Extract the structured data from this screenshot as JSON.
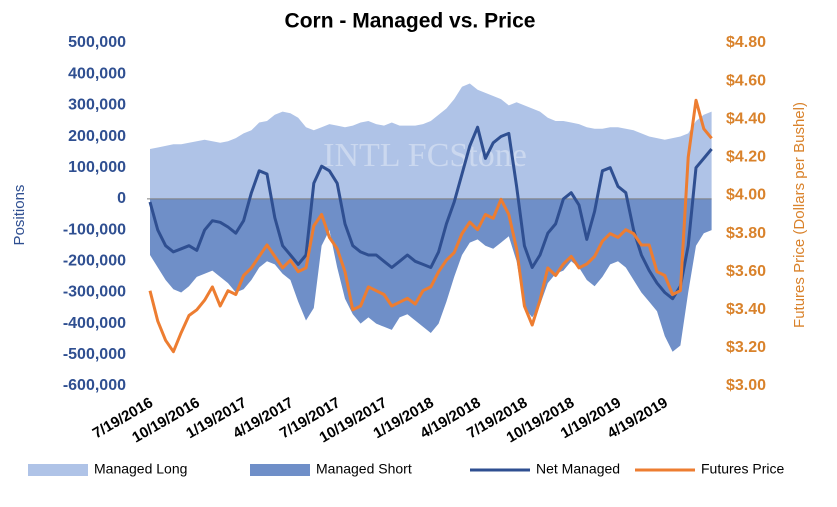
{
  "chart_data": {
    "type": "combo",
    "title": "Corn - Managed vs. Price",
    "y_label": "Positions",
    "y2_label": "Futures Price (Dollars per Bushel)",
    "watermark": "INTL FCStone",
    "legend": "bottom",
    "categories": [
      "7/19/2016",
      null,
      null,
      null,
      null,
      null,
      "10/19/2016",
      null,
      null,
      null,
      null,
      null,
      "1/19/2017",
      null,
      null,
      null,
      null,
      null,
      "4/19/2017",
      null,
      null,
      null,
      null,
      null,
      "7/19/2017",
      null,
      null,
      null,
      null,
      null,
      "10/19/2017",
      null,
      null,
      null,
      null,
      null,
      "1/19/2018",
      null,
      null,
      null,
      null,
      null,
      "4/19/2018",
      null,
      null,
      null,
      null,
      null,
      "7/19/2018",
      null,
      null,
      null,
      null,
      null,
      "10/19/2018",
      null,
      null,
      null,
      null,
      null,
      "1/19/2019",
      null,
      null,
      null,
      null,
      null,
      "4/19/2019",
      null,
      null,
      null,
      null,
      null,
      null
    ],
    "ylim": [
      -600000,
      500000
    ],
    "yticks": [
      {
        "value": -600000,
        "label": "-600,000"
      },
      {
        "value": -500000,
        "label": "-500,000"
      },
      {
        "value": -400000,
        "label": "-400,000"
      },
      {
        "value": -300000,
        "label": "-300,000"
      },
      {
        "value": -200000,
        "label": "-200,000"
      },
      {
        "value": -100000,
        "label": "-100,000"
      },
      0,
      {
        "value": 100000,
        "label": "100,000"
      },
      {
        "value": 200000,
        "label": "200,000"
      },
      {
        "value": 300000,
        "label": "300,000"
      },
      {
        "value": 400000,
        "label": "400,000"
      },
      {
        "value": 500000,
        "label": "500,000"
      }
    ],
    "y2lim": [
      3.0,
      4.8
    ],
    "y2ticks": [
      {
        "value": 3.0,
        "label": "$3.00"
      },
      {
        "value": 3.2,
        "label": "$3.20"
      },
      {
        "value": 3.4,
        "label": "$3.40"
      },
      {
        "value": 3.6,
        "label": "$3.60"
      },
      {
        "value": 3.8,
        "label": "$3.80"
      },
      {
        "value": 4.0,
        "label": "$4.00"
      },
      {
        "value": 4.2,
        "label": "$4.20"
      },
      {
        "value": 4.4,
        "label": "$4.40"
      },
      {
        "value": 4.6,
        "label": "$4.60"
      },
      {
        "value": 4.8,
        "label": "$4.80"
      }
    ],
    "series": [
      {
        "name": "Managed Long",
        "kind": "area",
        "color": "#afc3e7",
        "values": [
          160000,
          165000,
          170000,
          175000,
          175000,
          180000,
          185000,
          190000,
          185000,
          180000,
          185000,
          195000,
          210000,
          220000,
          245000,
          250000,
          270000,
          280000,
          275000,
          260000,
          230000,
          220000,
          230000,
          240000,
          235000,
          230000,
          235000,
          245000,
          250000,
          240000,
          235000,
          245000,
          235000,
          235000,
          235000,
          240000,
          250000,
          270000,
          290000,
          320000,
          360000,
          370000,
          350000,
          340000,
          330000,
          320000,
          300000,
          310000,
          300000,
          290000,
          280000,
          260000,
          250000,
          250000,
          245000,
          240000,
          230000,
          225000,
          225000,
          230000,
          230000,
          225000,
          220000,
          210000,
          200000,
          195000,
          190000,
          195000,
          200000,
          210000,
          250000,
          270000,
          280000
        ]
      },
      {
        "name": "Managed Short",
        "kind": "area",
        "color": "#6f8fc8",
        "values": [
          -180000,
          -220000,
          -260000,
          -290000,
          -300000,
          -280000,
          -250000,
          -240000,
          -230000,
          -250000,
          -270000,
          -300000,
          -290000,
          -260000,
          -220000,
          -200000,
          -210000,
          -240000,
          -260000,
          -330000,
          -390000,
          -350000,
          -150000,
          -100000,
          -220000,
          -320000,
          -370000,
          -400000,
          -380000,
          -400000,
          -410000,
          -420000,
          -380000,
          -370000,
          -390000,
          -410000,
          -430000,
          -400000,
          -330000,
          -250000,
          -180000,
          -140000,
          -130000,
          -150000,
          -160000,
          -140000,
          -120000,
          -200000,
          -350000,
          -380000,
          -340000,
          -270000,
          -240000,
          -230000,
          -200000,
          -220000,
          -260000,
          -280000,
          -250000,
          -210000,
          -200000,
          -220000,
          -260000,
          -300000,
          -330000,
          -360000,
          -440000,
          -490000,
          -470000,
          -300000,
          -150000,
          -110000,
          -100000
        ]
      },
      {
        "name": "Net Managed",
        "kind": "line",
        "color": "#2f4f91",
        "values": [
          -10000,
          -100000,
          -150000,
          -170000,
          -160000,
          -150000,
          -165000,
          -100000,
          -70000,
          -75000,
          -90000,
          -110000,
          -70000,
          20000,
          90000,
          80000,
          -60000,
          -150000,
          -180000,
          -210000,
          -180000,
          50000,
          105000,
          90000,
          50000,
          -80000,
          -150000,
          -170000,
          -180000,
          -180000,
          -200000,
          -220000,
          -200000,
          -180000,
          -200000,
          -210000,
          -220000,
          -170000,
          -80000,
          -10000,
          80000,
          170000,
          230000,
          130000,
          180000,
          200000,
          210000,
          40000,
          -150000,
          -220000,
          -180000,
          -110000,
          -80000,
          0,
          20000,
          -20000,
          -130000,
          -40000,
          90000,
          100000,
          40000,
          20000,
          -100000,
          -180000,
          -230000,
          -270000,
          -300000,
          -320000,
          -280000,
          -150000,
          100000,
          130000,
          160000
        ]
      },
      {
        "name": "Futures Price",
        "kind": "line",
        "axis": "y2",
        "color": "#ed7d31",
        "values": [
          3.5,
          3.34,
          3.24,
          3.18,
          3.28,
          3.37,
          3.4,
          3.45,
          3.52,
          3.42,
          3.5,
          3.48,
          3.58,
          3.62,
          3.68,
          3.74,
          3.68,
          3.62,
          3.66,
          3.6,
          3.62,
          3.84,
          3.9,
          3.78,
          3.72,
          3.6,
          3.4,
          3.42,
          3.52,
          3.5,
          3.48,
          3.42,
          3.44,
          3.46,
          3.43,
          3.5,
          3.52,
          3.6,
          3.66,
          3.7,
          3.8,
          3.86,
          3.82,
          3.9,
          3.88,
          3.98,
          3.9,
          3.72,
          3.42,
          3.32,
          3.45,
          3.62,
          3.58,
          3.64,
          3.68,
          3.62,
          3.64,
          3.68,
          3.76,
          3.8,
          3.78,
          3.82,
          3.8,
          3.74,
          3.74,
          3.6,
          3.58,
          3.48,
          3.5,
          4.2,
          4.5,
          4.35,
          4.3
        ]
      }
    ]
  }
}
